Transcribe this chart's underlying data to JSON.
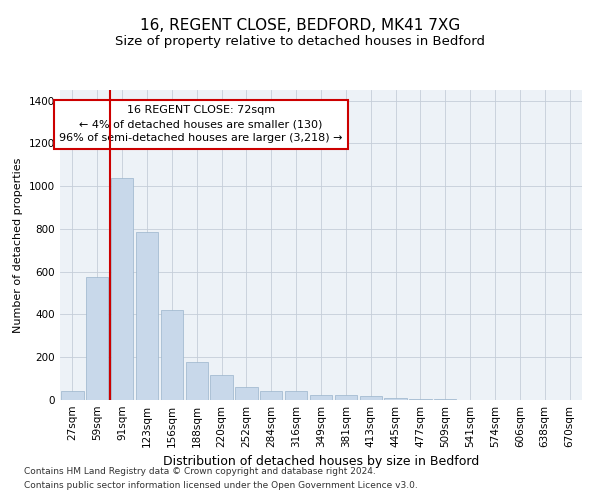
{
  "title1": "16, REGENT CLOSE, BEDFORD, MK41 7XG",
  "title2": "Size of property relative to detached houses in Bedford",
  "xlabel": "Distribution of detached houses by size in Bedford",
  "ylabel": "Number of detached properties",
  "bar_color": "#c8d8ea",
  "bar_edgecolor": "#9ab4cc",
  "vline_color": "#cc0000",
  "annotation_text": "16 REGENT CLOSE: 72sqm\n← 4% of detached houses are smaller (130)\n96% of semi-detached houses are larger (3,218) →",
  "annotation_box_color": "white",
  "annotation_box_edgecolor": "#cc0000",
  "footnote1": "Contains HM Land Registry data © Crown copyright and database right 2024.",
  "footnote2": "Contains public sector information licensed under the Open Government Licence v3.0.",
  "categories": [
    "27sqm",
    "59sqm",
    "91sqm",
    "123sqm",
    "156sqm",
    "188sqm",
    "220sqm",
    "252sqm",
    "284sqm",
    "316sqm",
    "349sqm",
    "381sqm",
    "413sqm",
    "445sqm",
    "477sqm",
    "509sqm",
    "541sqm",
    "574sqm",
    "606sqm",
    "638sqm",
    "670sqm"
  ],
  "values": [
    40,
    575,
    1040,
    785,
    420,
    178,
    118,
    60,
    42,
    42,
    25,
    25,
    20,
    10,
    5,
    3,
    2,
    1,
    0,
    0,
    0
  ],
  "ylim": [
    0,
    1450
  ],
  "yticks": [
    0,
    200,
    400,
    600,
    800,
    1000,
    1200,
    1400
  ],
  "plot_bg_color": "#edf2f7",
  "grid_color": "#c5cdd8",
  "title1_fontsize": 11,
  "title2_fontsize": 9.5,
  "xlabel_fontsize": 9,
  "ylabel_fontsize": 8,
  "tick_fontsize": 7.5,
  "annotation_fontsize": 8,
  "footnote_fontsize": 6.5
}
